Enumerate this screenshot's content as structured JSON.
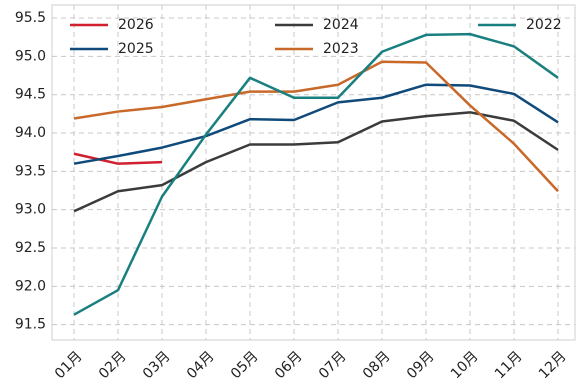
{
  "chart_data": {
    "type": "line",
    "categories": [
      "01月",
      "02月",
      "03月",
      "04月",
      "05月",
      "06月",
      "07月",
      "08月",
      "09月",
      "10月",
      "11月",
      "12月"
    ],
    "series": [
      {
        "name": "2026",
        "color": "#d0202f",
        "values": [
          93.73,
          93.6,
          93.62,
          null,
          null,
          null,
          null,
          null,
          null,
          null,
          null,
          null
        ]
      },
      {
        "name": "2025",
        "color": "#0f4a7a",
        "values": [
          93.6,
          93.7,
          93.81,
          93.96,
          94.18,
          94.17,
          94.4,
          94.46,
          94.63,
          94.62,
          94.51,
          94.14
        ]
      },
      {
        "name": "2024",
        "color": "#3b3b3b",
        "values": [
          92.98,
          93.24,
          93.32,
          93.62,
          93.85,
          93.85,
          93.88,
          94.15,
          94.22,
          94.27,
          94.16,
          93.78
        ]
      },
      {
        "name": "2023",
        "color": "#c8692a",
        "values": [
          94.19,
          94.28,
          94.34,
          94.44,
          94.54,
          94.54,
          94.63,
          94.93,
          94.92,
          94.36,
          93.86,
          93.24
        ]
      },
      {
        "name": "2022",
        "color": "#1a7f7f",
        "values": [
          91.63,
          91.95,
          93.17,
          93.98,
          94.72,
          94.46,
          94.46,
          95.06,
          95.28,
          95.29,
          95.13,
          94.72
        ]
      }
    ],
    "ylim": [
      91.3,
      95.67
    ],
    "yticks": [
      {
        "value": 91.5,
        "label": "91.5"
      },
      {
        "value": 92,
        "label": "92.0"
      },
      {
        "value": 92.5,
        "label": "92.5"
      },
      {
        "value": 93,
        "label": "93.0"
      },
      {
        "value": 93.5,
        "label": "93.5"
      },
      {
        "value": 94,
        "label": "94.0"
      },
      {
        "value": 94.5,
        "label": "94.5"
      },
      {
        "value": 95,
        "label": "95.0"
      },
      {
        "value": 95.5,
        "label": "95.5"
      }
    ],
    "grid": true
  }
}
